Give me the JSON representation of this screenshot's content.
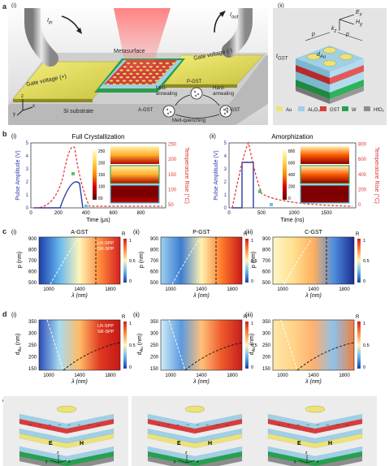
{
  "panel_a": {
    "letter": "a",
    "sub_i": "(i)",
    "sub_ii": "(ii)",
    "i_in": "I",
    "i_in_sub": "in",
    "i_out": "I",
    "i_out_sub": "out",
    "metasurface": "Metasurface",
    "gate_pos": "Gate voltage (+)",
    "gate_neg": "Gate voltage (-)",
    "substrate": "Si substrate",
    "axes": {
      "y": "y",
      "z": "z",
      "x": "x"
    },
    "cycle": {
      "pgst": "P-GST",
      "agst": "A-GST",
      "cgst": "C-GST",
      "mild": "Mild-\nannealing",
      "hard": "Hard-\nannealing",
      "melt": "Melt-quenching"
    },
    "unit_cell": {
      "p1": "p",
      "p2": "p",
      "tgst": "t",
      "tgst_sub": "GST",
      "dau": "d",
      "dau_sub": "Au",
      "ex": "E",
      "ex_sub": "x",
      "hy": "H",
      "hy_sub": "y",
      "kz": "k",
      "kz_sub": "z"
    },
    "legend": [
      {
        "label": "Au",
        "color": "#ede27a"
      },
      {
        "label": "Al₂O₃",
        "color": "#9fd0e6"
      },
      {
        "label": "GST",
        "color": "#d83c3c"
      },
      {
        "label": "W",
        "color": "#27a04e"
      },
      {
        "label": "HfO₂",
        "color": "#8d8d8d"
      }
    ]
  },
  "panel_b": {
    "letter": "b",
    "charts": [
      {
        "sub": "(i)",
        "title": "Full Crystallization",
        "xlabel": "Time (μs)",
        "ylabel_left": "Pulse Amplitude (V)",
        "ylabel_right": "Temperature Rise (°C)",
        "xticks": [
          "0",
          "200",
          "400",
          "600",
          "800"
        ],
        "yticks_left": [
          "0",
          "1",
          "2",
          "3",
          "4",
          "5"
        ],
        "yticks_right": [
          "50",
          "100",
          "150",
          "200",
          "250"
        ],
        "cbar": [
          "250",
          "200",
          "150",
          "100",
          "50"
        ]
      },
      {
        "sub": "(ii)",
        "title": "Amorphization",
        "xlabel": "Time (ns)",
        "ylabel_left": "Pulse Amplitude (V)",
        "ylabel_right": "Temperature Rise (°C)",
        "xticks": [
          "0",
          "500",
          "1000",
          "1500"
        ],
        "yticks_left": [
          "0",
          "1",
          "2",
          "3",
          "4",
          "5"
        ],
        "yticks_right": [
          "0",
          "200",
          "400",
          "600",
          "800"
        ],
        "cbar": [
          "800",
          "600",
          "400",
          "200",
          "0"
        ]
      }
    ]
  },
  "panel_c": {
    "letter": "c",
    "ylabel": "p (nm)",
    "xlabel": "λ (nm)",
    "cbar_title": "R",
    "cbar_ticks": [
      "1",
      "0.5",
      "0"
    ],
    "maps": [
      {
        "sub": "(i)",
        "title": "A-GST",
        "yticks": [
          "900",
          "800",
          "700",
          "600",
          "500"
        ],
        "xticks": [
          "1000",
          "1400",
          "1800"
        ],
        "lr": "LR-SPP",
        "sr": "SR-SPP"
      },
      {
        "sub": "(ii)",
        "title": "P-GST",
        "yticks": [
          "900",
          "800",
          "700",
          "600",
          "500"
        ],
        "xticks": [
          "1000",
          "1400",
          "1800"
        ]
      },
      {
        "sub": "(iii)",
        "title": "C-GST",
        "yticks": [
          "900",
          "800",
          "700",
          "600",
          "500"
        ],
        "xticks": [
          "1000",
          "1400",
          "1800"
        ]
      }
    ]
  },
  "panel_d": {
    "letter": "d",
    "ylabel": "d",
    "ylabel_sub": "Au",
    "ylabel_unit": " (nm)",
    "xlabel": "λ (nm)",
    "cbar_title": "R",
    "cbar_ticks": [
      "1",
      "0.5",
      "0"
    ],
    "maps": [
      {
        "sub": "(i)",
        "yticks": [
          "350",
          "300",
          "250",
          "200",
          "150"
        ],
        "xticks": [
          "1000",
          "1400",
          "1800"
        ],
        "lr": "LR-SPP",
        "sr": "SR-SPP"
      },
      {
        "sub": "(ii)",
        "yticks": [
          "350",
          "300",
          "250",
          "200",
          "150"
        ],
        "xticks": [
          "1000",
          "1400",
          "1800"
        ]
      },
      {
        "sub": "(iii)",
        "yticks": [
          "350",
          "300",
          "250",
          "200",
          "150"
        ],
        "xticks": [
          "1000",
          "1400",
          "1800"
        ]
      }
    ]
  },
  "panel_e": {
    "letter": "e",
    "items": [
      {
        "sub": "(i)",
        "e": "E",
        "h": "H"
      },
      {
        "sub": "(ii)",
        "e": "E",
        "h": "H"
      },
      {
        "sub": "(iii)",
        "e": "E",
        "h": "H"
      }
    ],
    "axes": {
      "z": "z",
      "y": "y",
      "x": "x"
    }
  },
  "colors": {
    "blue": "#2b3da8",
    "red": "#e03030",
    "gray_bg": "#e9e9e9"
  }
}
